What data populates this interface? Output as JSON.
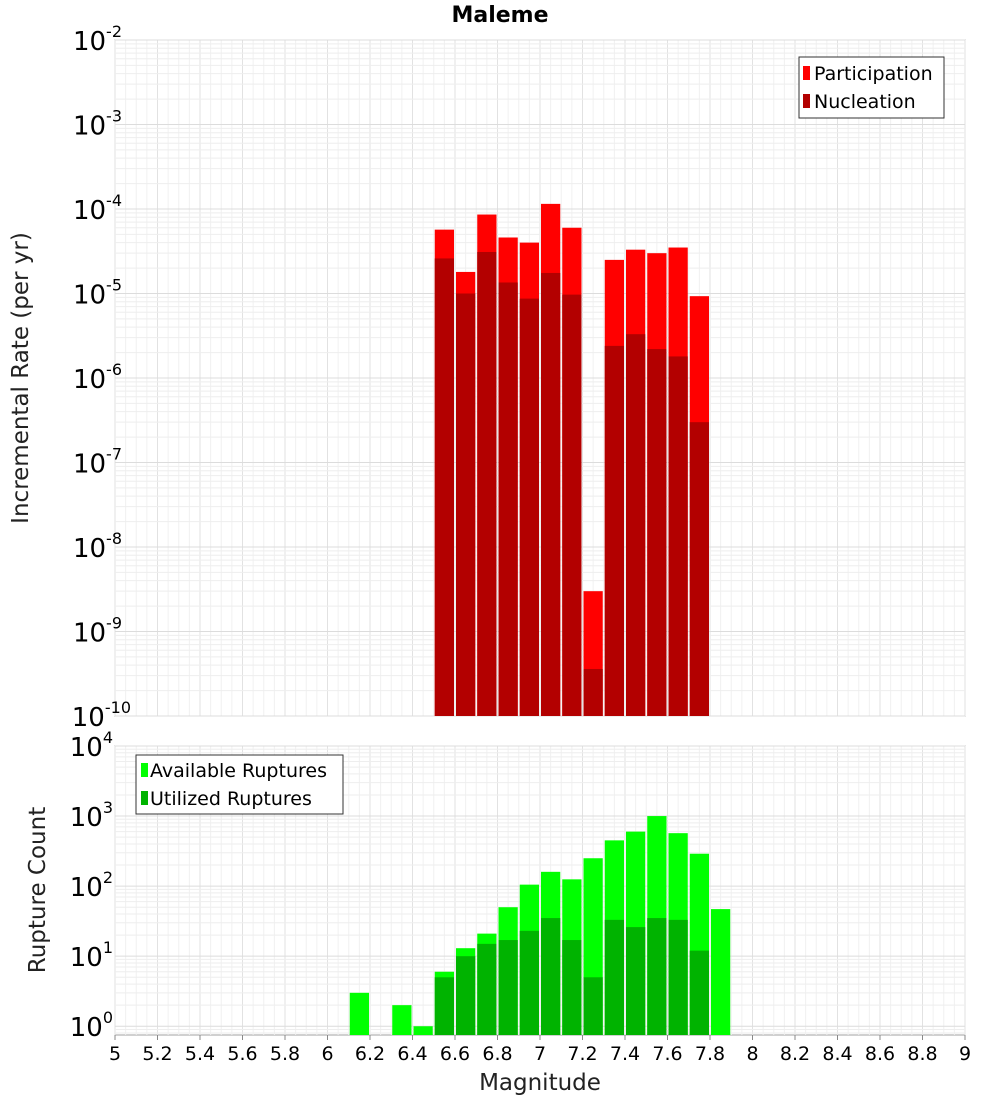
{
  "chart_data": [
    {
      "type": "bar",
      "title": "Maleme",
      "xlabel": "",
      "ylabel": "Incremental Rate (per yr)",
      "y_scale": "log",
      "xlim": [
        5,
        9
      ],
      "ylim": [
        1e-10,
        0.01
      ],
      "grid": true,
      "legend_placement": "top-right",
      "bar_width": 0.1,
      "x": [
        6.55,
        6.65,
        6.75,
        6.85,
        6.95,
        7.05,
        7.15,
        7.25,
        7.35,
        7.45,
        7.55,
        7.65,
        7.75
      ],
      "series": [
        {
          "name": "Participation",
          "color": "#ff0000",
          "values": [
            5.7e-05,
            1.8e-05,
            8.6e-05,
            4.6e-05,
            4e-05,
            0.000115,
            6e-05,
            3e-09,
            2.5e-05,
            3.3e-05,
            3e-05,
            3.5e-05,
            9.3e-06
          ]
        },
        {
          "name": "Nucleation",
          "color": "#b30000",
          "values": [
            2.6e-05,
            1e-05,
            3.1e-05,
            1.35e-05,
            8.7e-06,
            1.75e-05,
            9.7e-06,
            3.6e-10,
            2.4e-06,
            3.3e-06,
            2.2e-06,
            1.8e-06,
            3e-07
          ]
        }
      ]
    },
    {
      "type": "bar",
      "title": "",
      "xlabel": "Magnitude",
      "ylabel": "Rupture Count",
      "y_scale": "log",
      "xlim": [
        5,
        9
      ],
      "ylim": [
        0.75,
        10000
      ],
      "grid": true,
      "legend_placement": "top-left",
      "bar_width": 0.1,
      "x": [
        6.15,
        6.35,
        6.45,
        6.55,
        6.65,
        6.75,
        6.85,
        6.95,
        7.05,
        7.15,
        7.25,
        7.35,
        7.45,
        7.55,
        7.65,
        7.75,
        7.85
      ],
      "series": [
        {
          "name": "Available Ruptures",
          "color": "#00ff00",
          "values": [
            3,
            2,
            1,
            6,
            13,
            21,
            50,
            105,
            160,
            125,
            250,
            450,
            600,
            1000,
            570,
            290,
            47
          ]
        },
        {
          "name": "Utilized Ruptures",
          "color": "#00b300",
          "values": [
            0,
            0,
            0,
            5,
            10,
            15,
            17,
            23,
            35,
            17,
            5,
            33,
            26,
            35,
            33,
            12,
            0
          ]
        }
      ]
    }
  ],
  "x_ticks": [
    "5",
    "5.2",
    "5.4",
    "5.6",
    "5.8",
    "6",
    "6.2",
    "6.4",
    "6.6",
    "6.8",
    "7",
    "7.2",
    "7.4",
    "7.6",
    "7.8",
    "8",
    "8.2",
    "8.4",
    "8.6",
    "8.8",
    "9"
  ],
  "top_y_ticks": [
    {
      "base": "10",
      "exp": "-2"
    },
    {
      "base": "10",
      "exp": "-3"
    },
    {
      "base": "10",
      "exp": "-4"
    },
    {
      "base": "10",
      "exp": "-5"
    },
    {
      "base": "10",
      "exp": "-6"
    },
    {
      "base": "10",
      "exp": "-7"
    },
    {
      "base": "10",
      "exp": "-8"
    },
    {
      "base": "10",
      "exp": "-9"
    },
    {
      "base": "10",
      "exp": "-10"
    }
  ],
  "bottom_y_ticks": [
    {
      "base": "10",
      "exp": "4"
    },
    {
      "base": "10",
      "exp": "3"
    },
    {
      "base": "10",
      "exp": "2"
    },
    {
      "base": "10",
      "exp": "1"
    },
    {
      "base": "10",
      "exp": "0"
    }
  ]
}
